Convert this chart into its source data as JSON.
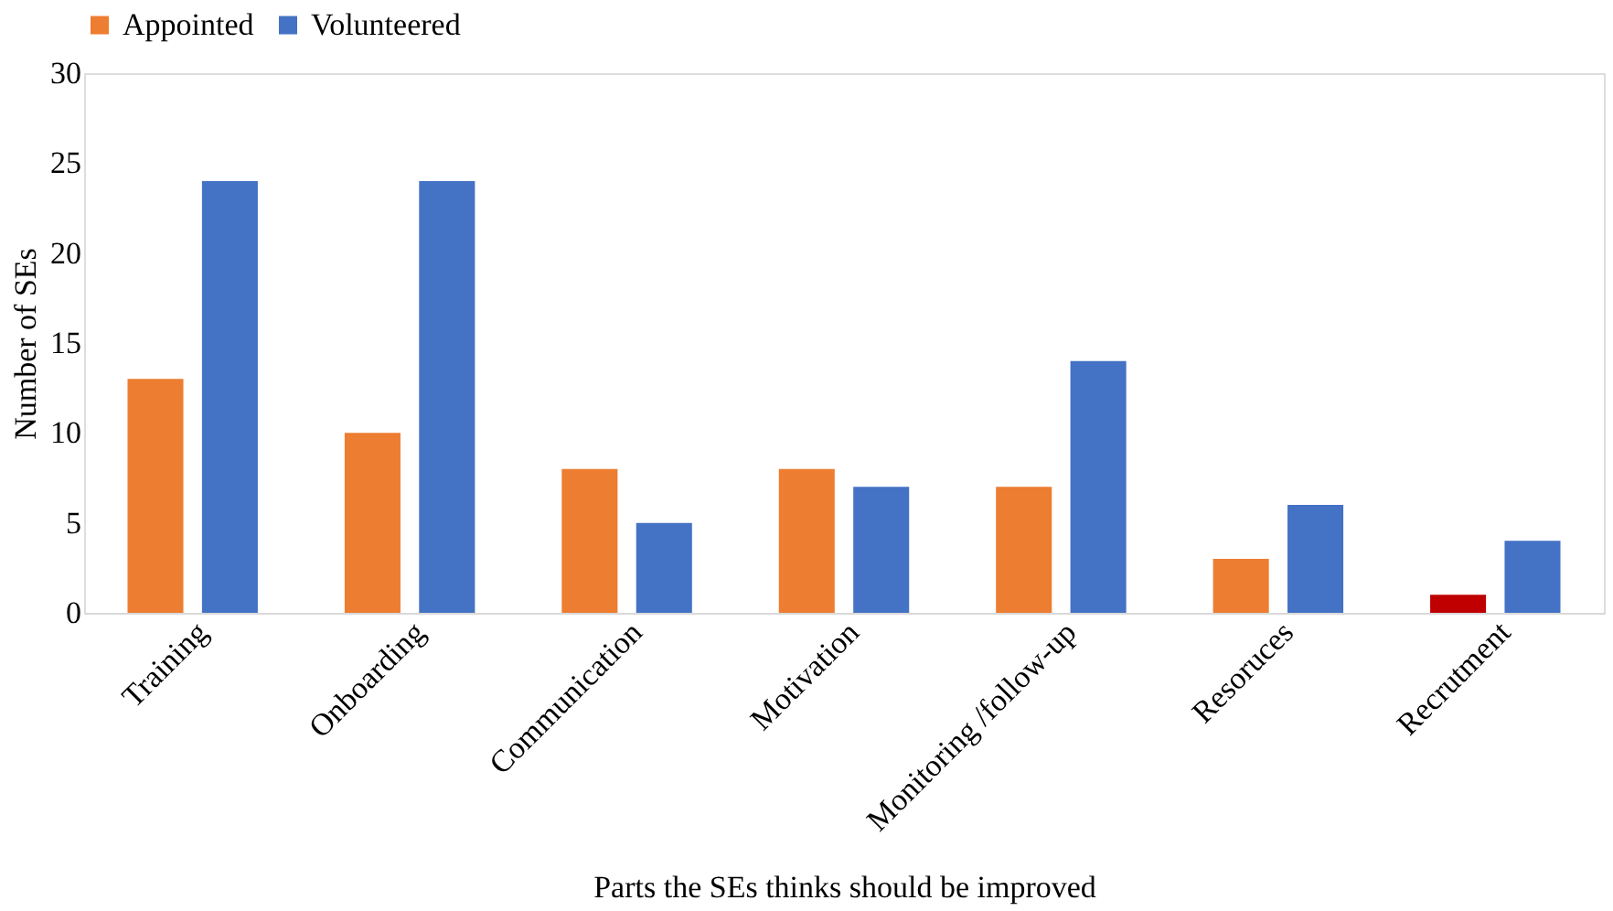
{
  "chart_data": {
    "type": "bar",
    "categories": [
      "Training",
      "Onboarding",
      "Communication",
      "Motivation",
      "Monitoring /follow-up",
      "Resoruces",
      "Recrutment"
    ],
    "series": [
      {
        "name": "Appointed",
        "color": "#ed7d31",
        "colors": [
          "#ed7d31",
          "#ed7d31",
          "#ed7d31",
          "#ed7d31",
          "#ed7d31",
          "#ed7d31",
          "#c00000"
        ],
        "values": [
          13,
          10,
          8,
          8,
          7,
          3,
          1
        ]
      },
      {
        "name": "Volunteered",
        "color": "#4472c4",
        "values": [
          24,
          24,
          5,
          7,
          14,
          6,
          4
        ]
      }
    ],
    "xlabel": "Parts the SEs thinks should be improved",
    "ylabel": "Number of SEs",
    "ylim": [
      0,
      30
    ],
    "yticks": [
      0,
      5,
      10,
      15,
      20,
      25,
      30
    ],
    "grid": false,
    "legend": "top"
  }
}
